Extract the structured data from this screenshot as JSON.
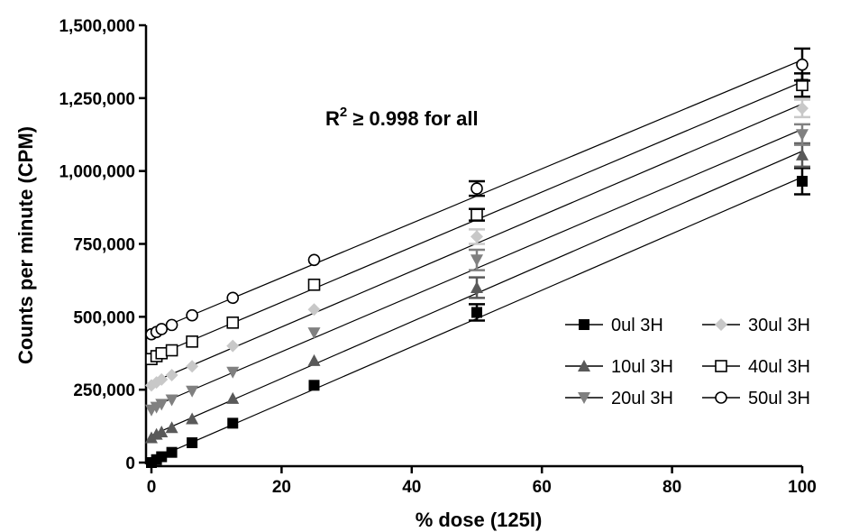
{
  "chart_data": {
    "type": "scatter",
    "xlabel": "% dose (125I)",
    "ylabel": "Counts per minute (CPM)",
    "xlim": [
      0,
      100
    ],
    "ylim": [
      0,
      1500000
    ],
    "x_ticks": [
      0,
      20,
      40,
      60,
      80,
      100
    ],
    "y_ticks": [
      0,
      250000,
      500000,
      750000,
      1000000,
      1250000,
      1500000
    ],
    "x_tick_labels": [
      "0",
      "20",
      "40",
      "60",
      "80",
      "100"
    ],
    "y_tick_labels": [
      "0",
      "250,000",
      "500,000",
      "750,000",
      "1,000,000",
      "1,250,000",
      "1,500,000"
    ],
    "annotation": {
      "base": "R",
      "sup": "2",
      "rest": " ≥ 0.998 for all"
    },
    "grid": false,
    "legend_position": "bottom-right",
    "x": [
      0,
      0.78,
      1.56,
      3.13,
      6.25,
      12.5,
      25,
      50,
      100
    ],
    "series": [
      {
        "name": "0ul 3H",
        "marker": "square-filled",
        "color": "#000000",
        "values": [
          0,
          10000,
          20000,
          35000,
          68000,
          135000,
          265000,
          515000,
          965000
        ],
        "errors": [
          0,
          0,
          0,
          0,
          0,
          0,
          0,
          28000,
          45000
        ]
      },
      {
        "name": "10ul 3H",
        "marker": "triangle-up-filled",
        "color": "#595959",
        "values": [
          85000,
          97000,
          105000,
          120000,
          150000,
          220000,
          350000,
          600000,
          1055000
        ],
        "errors": [
          0,
          0,
          0,
          0,
          0,
          0,
          0,
          35000,
          40000
        ]
      },
      {
        "name": "20ul 3H",
        "marker": "triangle-down-filled",
        "color": "#808080",
        "values": [
          180000,
          190000,
          200000,
          215000,
          245000,
          310000,
          445000,
          695000,
          1125000
        ],
        "errors": [
          0,
          0,
          0,
          0,
          0,
          0,
          0,
          35000,
          35000
        ]
      },
      {
        "name": "30ul 3H",
        "marker": "diamond-filled",
        "color": "#c8c8c8",
        "values": [
          265000,
          275000,
          285000,
          300000,
          330000,
          400000,
          525000,
          775000,
          1215000
        ],
        "errors": [
          0,
          0,
          0,
          0,
          0,
          0,
          0,
          25000,
          30000
        ]
      },
      {
        "name": "40ul 3H",
        "marker": "square-open",
        "color": "#000000",
        "values": [
          355000,
          365000,
          375000,
          385000,
          415000,
          480000,
          610000,
          850000,
          1295000
        ],
        "errors": [
          0,
          0,
          0,
          0,
          0,
          0,
          0,
          20000,
          40000
        ]
      },
      {
        "name": "50ul 3H",
        "marker": "circle-open",
        "color": "#000000",
        "values": [
          440000,
          448000,
          458000,
          472000,
          505000,
          565000,
          695000,
          940000,
          1365000
        ],
        "errors": [
          0,
          0,
          0,
          0,
          0,
          0,
          0,
          25000,
          55000
        ]
      }
    ]
  }
}
